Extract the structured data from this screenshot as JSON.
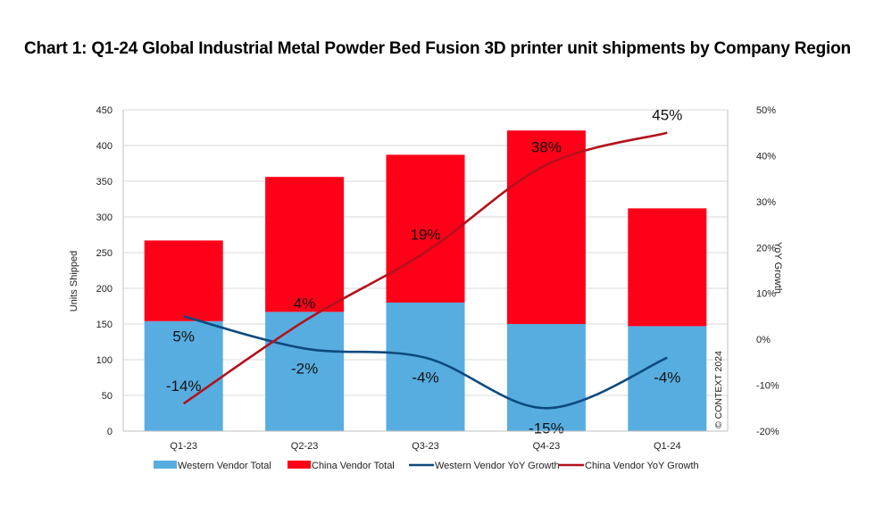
{
  "chart_data": {
    "type": "bar",
    "stacked": true,
    "title": "Chart 1: Q1-24 Global Industrial Metal Powder Bed Fusion 3D printer unit shipments by Company Region",
    "categories": [
      "Q1-23",
      "Q2-23",
      "Q3-23",
      "Q4-23",
      "Q1-24"
    ],
    "ylabel": "Units Shipped",
    "ylim": [
      0,
      450
    ],
    "yticks": [
      0,
      50,
      100,
      150,
      200,
      250,
      300,
      350,
      400,
      450
    ],
    "y2label": "YoY Growth",
    "y2lim": [
      -20,
      50
    ],
    "y2ticks": [
      "-20%",
      "-10%",
      "0%",
      "10%",
      "20%",
      "30%",
      "40%",
      "50%"
    ],
    "grid": true,
    "legend_position": "bottom",
    "series": [
      {
        "name": "Western Vendor Total",
        "type": "bar",
        "axis": "left",
        "color": "#58ade0",
        "values": [
          154,
          167,
          180,
          150,
          147
        ]
      },
      {
        "name": "China Vendor Total",
        "type": "bar",
        "axis": "left",
        "color": "#ff0019",
        "values": [
          113,
          189,
          207,
          271,
          165
        ]
      },
      {
        "name": "Western Vendor YoY Growth",
        "type": "line",
        "axis": "right",
        "color": "#0c4a7e",
        "values": [
          5,
          -2,
          -4,
          -15,
          -4
        ],
        "labels": [
          "5%",
          "-2%",
          "-4%",
          "-15%",
          "-4%"
        ]
      },
      {
        "name": "China Vendor YoY Growth",
        "type": "line",
        "axis": "right",
        "color": "#b3121b",
        "values": [
          -14,
          4,
          19,
          38,
          45
        ],
        "labels": [
          "-14%",
          "4%",
          "19%",
          "38%",
          "45%"
        ]
      }
    ],
    "watermark": "© CONTEXT 2024"
  }
}
